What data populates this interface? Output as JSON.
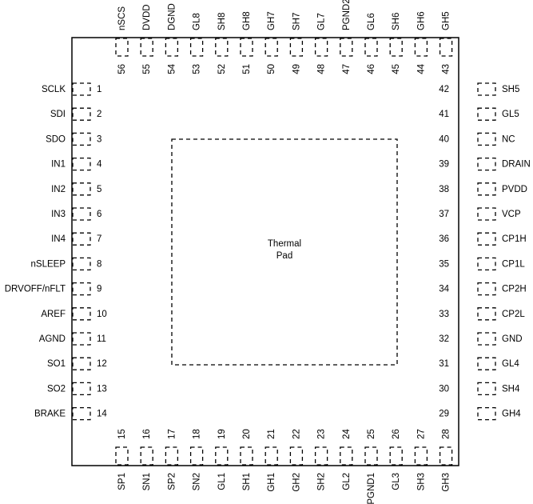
{
  "thermal_pad": {
    "line1": "Thermal",
    "line2": "Pad"
  },
  "pins": {
    "left": [
      {
        "num": "1",
        "name": "SCLK"
      },
      {
        "num": "2",
        "name": "SDI"
      },
      {
        "num": "3",
        "name": "SDO"
      },
      {
        "num": "4",
        "name": "IN1"
      },
      {
        "num": "5",
        "name": "IN2"
      },
      {
        "num": "6",
        "name": "IN3"
      },
      {
        "num": "7",
        "name": "IN4"
      },
      {
        "num": "8",
        "name": "nSLEEP"
      },
      {
        "num": "9",
        "name": "DRVOFF/nFLT"
      },
      {
        "num": "10",
        "name": "AREF"
      },
      {
        "num": "11",
        "name": "AGND"
      },
      {
        "num": "12",
        "name": "SO1"
      },
      {
        "num": "13",
        "name": "SO2"
      },
      {
        "num": "14",
        "name": "BRAKE"
      }
    ],
    "bottom": [
      {
        "num": "15",
        "name": "SP1"
      },
      {
        "num": "16",
        "name": "SN1"
      },
      {
        "num": "17",
        "name": "SP2"
      },
      {
        "num": "18",
        "name": "SN2"
      },
      {
        "num": "19",
        "name": "GL1"
      },
      {
        "num": "20",
        "name": "SH1"
      },
      {
        "num": "21",
        "name": "GH1"
      },
      {
        "num": "22",
        "name": "GH2"
      },
      {
        "num": "23",
        "name": "SH2"
      },
      {
        "num": "24",
        "name": "GL2"
      },
      {
        "num": "25",
        "name": "PGND1"
      },
      {
        "num": "26",
        "name": "GL3"
      },
      {
        "num": "27",
        "name": "SH3"
      },
      {
        "num": "28",
        "name": "GH3"
      }
    ],
    "right": [
      {
        "num": "42",
        "name": "SH5"
      },
      {
        "num": "41",
        "name": "GL5"
      },
      {
        "num": "40",
        "name": "NC"
      },
      {
        "num": "39",
        "name": "DRAIN"
      },
      {
        "num": "38",
        "name": "PVDD"
      },
      {
        "num": "37",
        "name": "VCP"
      },
      {
        "num": "36",
        "name": "CP1H"
      },
      {
        "num": "35",
        "name": "CP1L"
      },
      {
        "num": "34",
        "name": "CP2H"
      },
      {
        "num": "33",
        "name": "CP2L"
      },
      {
        "num": "32",
        "name": "GND"
      },
      {
        "num": "31",
        "name": "GL4"
      },
      {
        "num": "30",
        "name": "SH4"
      },
      {
        "num": "29",
        "name": "GH4"
      }
    ],
    "top": [
      {
        "num": "56",
        "name": "nSCS"
      },
      {
        "num": "55",
        "name": "DVDD"
      },
      {
        "num": "54",
        "name": "DGND"
      },
      {
        "num": "53",
        "name": "GL8"
      },
      {
        "num": "52",
        "name": "SH8"
      },
      {
        "num": "51",
        "name": "GH8"
      },
      {
        "num": "50",
        "name": "GH7"
      },
      {
        "num": "49",
        "name": "SH7"
      },
      {
        "num": "48",
        "name": "GL7"
      },
      {
        "num": "47",
        "name": "PGND2"
      },
      {
        "num": "46",
        "name": "GL6"
      },
      {
        "num": "45",
        "name": "SH6"
      },
      {
        "num": "44",
        "name": "GH6"
      },
      {
        "num": "43",
        "name": "GH5"
      }
    ]
  }
}
